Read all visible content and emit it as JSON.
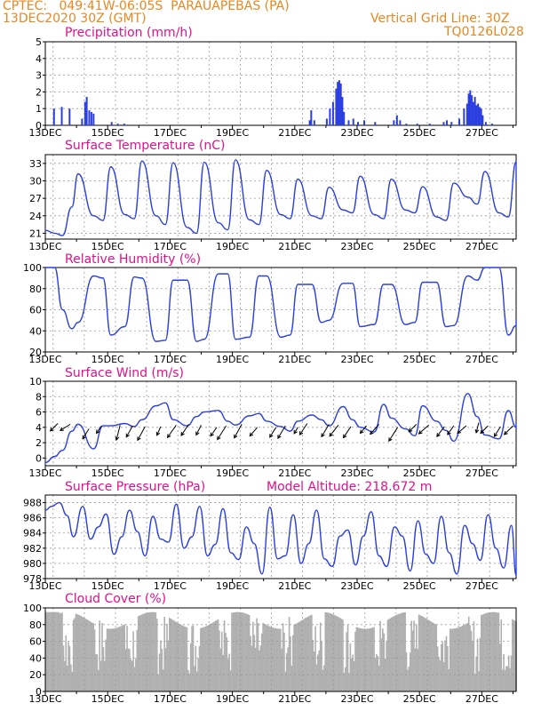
{
  "header": {
    "line1_left": "CPTEC:   049:41W-06:05S  PARAUAPEBAS (PA)",
    "line2_left": "13DEC2020 30Z (GMT)",
    "line1_right": "Vertical Grid Line: 30Z",
    "line2_right": "TQ0126L028"
  },
  "x_tick_labels": [
    "13DEC",
    "15DEC",
    "17DEC",
    "19DEC",
    "21DEC",
    "23DEC",
    "25DEC",
    "27DEC"
  ],
  "colors": {
    "series": "#2b3fe0",
    "title": "#e0118a",
    "header": "#e8871e",
    "cloud": "#b0b0b0"
  },
  "chart_data": [
    {
      "type": "bar",
      "title": "Precipitation (mm/h)",
      "ylim": [
        0,
        5
      ],
      "yticks": [
        0,
        1,
        2,
        3,
        4,
        5
      ],
      "x_unit": "days since 13DEC 00Z",
      "bars": [
        [
          0.25,
          1.0
        ],
        [
          0.5,
          1.1
        ],
        [
          0.75,
          1.0
        ],
        [
          1.15,
          0.4
        ],
        [
          1.25,
          1.4
        ],
        [
          1.3,
          1.7
        ],
        [
          1.38,
          0.9
        ],
        [
          1.45,
          0.8
        ],
        [
          1.52,
          0.7
        ],
        [
          2.1,
          0.2
        ],
        [
          2.3,
          0.1
        ],
        [
          2.5,
          0.1
        ],
        [
          8.45,
          0.3
        ],
        [
          8.5,
          0.9
        ],
        [
          8.6,
          0.3
        ],
        [
          9.0,
          0.4
        ],
        [
          9.1,
          1.0
        ],
        [
          9.2,
          1.4
        ],
        [
          9.3,
          2.2
        ],
        [
          9.35,
          2.6
        ],
        [
          9.4,
          2.7
        ],
        [
          9.45,
          2.5
        ],
        [
          9.5,
          1.7
        ],
        [
          9.55,
          0.8
        ],
        [
          9.7,
          0.3
        ],
        [
          9.85,
          0.4
        ],
        [
          10.0,
          0.2
        ],
        [
          10.2,
          0.3
        ],
        [
          10.55,
          0.2
        ],
        [
          11.15,
          0.3
        ],
        [
          11.25,
          0.6
        ],
        [
          11.35,
          0.3
        ],
        [
          11.55,
          0.1
        ],
        [
          11.9,
          0.1
        ],
        [
          12.3,
          0.1
        ],
        [
          12.75,
          0.2
        ],
        [
          12.85,
          0.3
        ],
        [
          13.0,
          0.2
        ],
        [
          13.25,
          0.4
        ],
        [
          13.4,
          1.0
        ],
        [
          13.5,
          1.3
        ],
        [
          13.55,
          1.9
        ],
        [
          13.6,
          2.1
        ],
        [
          13.65,
          1.8
        ],
        [
          13.7,
          1.4
        ],
        [
          13.75,
          1.7
        ],
        [
          13.8,
          1.2
        ],
        [
          13.85,
          1.3
        ],
        [
          13.9,
          1.1
        ],
        [
          13.95,
          1.0
        ],
        [
          14.0,
          0.6
        ],
        [
          14.1,
          0.2
        ],
        [
          14.3,
          0.1
        ]
      ]
    },
    {
      "type": "line",
      "title": "Surface Temperature (nC)",
      "ylim": [
        20,
        34.5
      ],
      "yticks": [
        21,
        24,
        27,
        30,
        33
      ],
      "x": [
        0,
        0.3,
        0.55,
        0.85,
        1.05,
        1.55,
        1.85,
        2.1,
        2.55,
        2.85,
        3.1,
        3.55,
        3.85,
        4.1,
        4.55,
        4.85,
        5.1,
        5.55,
        5.85,
        6.1,
        6.55,
        6.85,
        7.1,
        7.55,
        7.85,
        8.1,
        8.55,
        8.85,
        9.1,
        9.55,
        9.85,
        10.1,
        10.55,
        10.85,
        11.1,
        11.55,
        11.85,
        12.1,
        12.55,
        12.85,
        13.1,
        13.55,
        13.85,
        14.1,
        14.55,
        14.85,
        15.1
      ],
      "y": [
        21.5,
        21.0,
        20.6,
        25.5,
        31.2,
        24.0,
        23.2,
        32.4,
        24.2,
        23.5,
        33.4,
        24.0,
        22.5,
        33.1,
        22.0,
        21.0,
        33.2,
        22.8,
        21.6,
        33.6,
        23.3,
        22.5,
        31.8,
        24.2,
        23.5,
        30.3,
        24.0,
        23.5,
        28.9,
        25.0,
        24.5,
        30.8,
        24.2,
        23.5,
        30.3,
        25.0,
        24.5,
        29.0,
        23.8,
        23.2,
        29.6,
        27.2,
        26.0,
        31.6,
        24.5,
        23.8,
        33.3
      ],
      "y_tail": 30.0
    },
    {
      "type": "line",
      "title": "Relative Humidity (%)",
      "ylim": [
        20,
        100
      ],
      "yticks": [
        20,
        40,
        60,
        80,
        100
      ],
      "x": [
        0,
        0.3,
        0.55,
        0.85,
        1.05,
        1.55,
        1.85,
        2.1,
        2.55,
        2.85,
        3.1,
        3.55,
        3.85,
        4.1,
        4.55,
        4.85,
        5.1,
        5.55,
        5.85,
        6.1,
        6.55,
        6.85,
        7.1,
        7.55,
        7.85,
        8.1,
        8.55,
        8.85,
        9.1,
        9.55,
        9.85,
        10.1,
        10.55,
        10.85,
        11.1,
        11.55,
        11.85,
        12.1,
        12.55,
        12.85,
        13.1,
        13.55,
        13.85,
        14.1,
        14.55,
        14.85,
        15.1
      ],
      "y": [
        100,
        100,
        60,
        42,
        48,
        92,
        90,
        36,
        44,
        91,
        90,
        30,
        31,
        88,
        88,
        30,
        32,
        94,
        94,
        32,
        34,
        92,
        92,
        34,
        36,
        84,
        84,
        48,
        50,
        85,
        85,
        44,
        46,
        84,
        84,
        46,
        48,
        86,
        86,
        44,
        45,
        92,
        88,
        100,
        100,
        36,
        45
      ],
      "y_tail": 50
    },
    {
      "type": "line",
      "title": "Surface Wind (m/s)",
      "ylim": [
        -1,
        10
      ],
      "yticks": [
        0,
        2,
        4,
        6,
        8,
        10
      ],
      "x": [
        0,
        0.3,
        0.55,
        0.85,
        1.05,
        1.55,
        1.85,
        2.1,
        2.55,
        2.85,
        3.1,
        3.55,
        3.85,
        4.1,
        4.55,
        4.85,
        5.1,
        5.55,
        5.85,
        6.1,
        6.55,
        6.85,
        7.1,
        7.55,
        7.85,
        8.1,
        8.55,
        8.85,
        9.1,
        9.55,
        9.85,
        10.1,
        10.55,
        10.85,
        11.1,
        11.55,
        11.85,
        12.1,
        12.55,
        12.85,
        13.1,
        13.55,
        13.85,
        14.1,
        14.55,
        14.85,
        15.1
      ],
      "y": [
        -0.6,
        0.2,
        1.0,
        3.5,
        4.4,
        1.2,
        4.2,
        4.2,
        4.5,
        4.1,
        5.0,
        6.8,
        7.2,
        5.0,
        4.2,
        5.4,
        6.0,
        6.2,
        4.8,
        4.3,
        5.5,
        5.8,
        4.8,
        4.1,
        3.5,
        4.8,
        5.6,
        5.0,
        4.2,
        6.7,
        5.0,
        4.0,
        3.4,
        7.0,
        5.2,
        3.8,
        2.9,
        6.8,
        4.8,
        3.6,
        2.2,
        8.4,
        5.4,
        3.0,
        2.5,
        6.2,
        4.0
      ],
      "y_tail": 4.5,
      "arrows": [
        [
          0.4,
          4.5,
          -0.6,
          -0.6
        ],
        [
          0.8,
          4.4,
          -0.8,
          -0.5
        ],
        [
          1.4,
          3.8,
          -0.5,
          -0.8
        ],
        [
          1.8,
          4.2,
          -0.4,
          -0.6
        ],
        [
          2.4,
          4.3,
          -0.3,
          -1.2
        ],
        [
          2.8,
          4.2,
          -0.5,
          -0.9
        ],
        [
          3.2,
          4.1,
          -0.6,
          -1.1
        ],
        [
          3.7,
          4.1,
          -0.3,
          -0.7
        ],
        [
          4.2,
          4.3,
          -0.7,
          -1.0
        ],
        [
          4.6,
          4.4,
          -0.6,
          -0.9
        ],
        [
          5.0,
          4.3,
          -0.4,
          -0.8
        ],
        [
          5.5,
          4.0,
          -0.5,
          -0.7
        ],
        [
          5.8,
          4.2,
          -0.7,
          -1.1
        ],
        [
          6.3,
          4.4,
          -0.6,
          -1.1
        ],
        [
          6.8,
          4.0,
          -0.6,
          -0.7
        ],
        [
          7.4,
          4.0,
          -0.5,
          -0.8
        ],
        [
          7.7,
          4.2,
          -0.6,
          -1.0
        ],
        [
          8.1,
          4.0,
          -0.3,
          -0.5
        ],
        [
          8.4,
          4.5,
          -0.6,
          -0.9
        ],
        [
          9.1,
          4.4,
          -0.6,
          -1.0
        ],
        [
          9.4,
          4.3,
          -0.7,
          -0.9
        ],
        [
          9.8,
          4.1,
          -0.6,
          -0.9
        ],
        [
          10.3,
          4.2,
          -0.5,
          -0.6
        ],
        [
          10.7,
          4.4,
          -0.7,
          -0.8
        ],
        [
          11.3,
          4.0,
          -0.7,
          -1.1
        ],
        [
          11.9,
          4.4,
          -0.6,
          -0.6
        ],
        [
          12.3,
          4.3,
          -0.8,
          -0.7
        ],
        [
          12.8,
          4.1,
          -0.6,
          -0.8
        ],
        [
          13.1,
          4.2,
          -0.5,
          -0.7
        ],
        [
          13.5,
          4.2,
          -0.7,
          -0.6
        ],
        [
          13.9,
          4.6,
          -0.2,
          -0.8
        ],
        [
          14.2,
          4.2,
          -0.6,
          -0.6
        ],
        [
          14.6,
          4.1,
          -0.5,
          -0.8
        ],
        [
          15.0,
          4.2,
          -0.7,
          -0.7
        ]
      ]
    },
    {
      "type": "line",
      "title": "Surface Pressure (hPa)",
      "annotation": "Model Altitude: 218.672 m",
      "ylim": [
        978,
        989
      ],
      "yticks": [
        978,
        980,
        982,
        984,
        986,
        988
      ],
      "x": [
        0,
        0.2,
        0.45,
        0.7,
        0.9,
        1.2,
        1.45,
        1.7,
        1.95,
        2.2,
        2.45,
        2.7,
        2.95,
        3.2,
        3.45,
        3.7,
        3.95,
        4.2,
        4.45,
        4.7,
        4.95,
        5.2,
        5.45,
        5.7,
        5.95,
        6.2,
        6.45,
        6.7,
        6.95,
        7.2,
        7.45,
        7.7,
        7.95,
        8.2,
        8.45,
        8.7,
        8.95,
        9.2,
        9.45,
        9.7,
        9.95,
        10.2,
        10.45,
        10.7,
        10.95,
        11.2,
        11.45,
        11.7,
        11.95,
        12.2,
        12.45,
        12.7,
        12.95,
        13.2,
        13.45,
        13.7,
        13.95,
        14.2,
        14.45,
        14.7,
        14.95,
        15.1
      ],
      "y": [
        987,
        987.5,
        988,
        986.3,
        983.5,
        987.5,
        983.2,
        984.8,
        986.5,
        981.2,
        983.5,
        987.0,
        984.2,
        981.0,
        986.2,
        983.2,
        982.8,
        987.8,
        982.0,
        983.5,
        987.5,
        981.0,
        982.5,
        987.2,
        981.4,
        980.5,
        984.8,
        982.6,
        978.6,
        987.4,
        980.6,
        981.0,
        986.4,
        980.0,
        982.6,
        987.0,
        980.6,
        979.6,
        983.6,
        984.4,
        979.8,
        983.6,
        986.8,
        981.0,
        979.6,
        984.8,
        983.6,
        979.0,
        985.6,
        981.2,
        980.0,
        986.2,
        981.4,
        978.6,
        985.0,
        982.6,
        980.4,
        986.4,
        982.0,
        979.4,
        985.0,
        978.4
      ],
      "y_tail": 982
    },
    {
      "type": "bar",
      "title": "Cloud Cover (%)",
      "ylim": [
        0,
        100
      ],
      "yticks": [
        0,
        20,
        40,
        60,
        80,
        100
      ]
    }
  ]
}
